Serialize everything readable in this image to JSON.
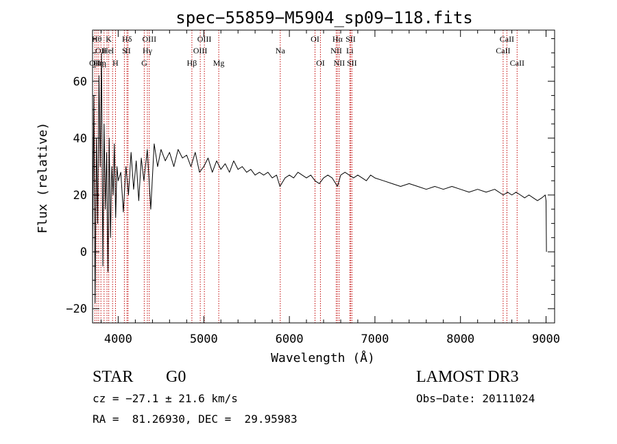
{
  "chart_data": {
    "type": "line",
    "title": "spec−55859−M5904_sp09−118.fits",
    "xlabel": "Wavelength (Å)",
    "ylabel": "Flux (relative)",
    "xlim": [
      3700,
      9100
    ],
    "ylim": [
      -25,
      78
    ],
    "x_ticks": [
      4000,
      5000,
      6000,
      7000,
      8000,
      9000
    ],
    "x_tick_labels": [
      "4000",
      "5000",
      "6000",
      "7000",
      "8000",
      "9000"
    ],
    "y_ticks": [
      -20,
      0,
      20,
      40,
      60
    ],
    "y_tick_labels": [
      "−20",
      "0",
      "20",
      "40",
      "60"
    ],
    "grid": false,
    "series": [
      {
        "name": "flux",
        "x": [
          3700,
          3715,
          3730,
          3745,
          3760,
          3775,
          3790,
          3805,
          3820,
          3835,
          3850,
          3865,
          3880,
          3895,
          3910,
          3925,
          3940,
          3955,
          3970,
          3985,
          4000,
          4030,
          4060,
          4090,
          4120,
          4150,
          4180,
          4210,
          4240,
          4270,
          4300,
          4340,
          4380,
          4420,
          4460,
          4500,
          4550,
          4600,
          4650,
          4700,
          4750,
          4800,
          4850,
          4900,
          4950,
          5000,
          5050,
          5100,
          5150,
          5200,
          5250,
          5300,
          5350,
          5400,
          5450,
          5500,
          5550,
          5600,
          5650,
          5700,
          5750,
          5800,
          5850,
          5890,
          5950,
          6000,
          6050,
          6100,
          6150,
          6200,
          6250,
          6300,
          6350,
          6400,
          6450,
          6500,
          6563,
          6600,
          6650,
          6700,
          6750,
          6800,
          6850,
          6900,
          6950,
          7000,
          7100,
          7200,
          7300,
          7400,
          7500,
          7600,
          7700,
          7800,
          7900,
          8000,
          8100,
          8200,
          8300,
          8400,
          8500,
          8550,
          8600,
          8650,
          8700,
          8750,
          8800,
          8850,
          8900,
          8950,
          8990,
          9000,
          9005
        ],
        "values": [
          0,
          55,
          -18,
          40,
          10,
          62,
          30,
          70,
          -5,
          45,
          15,
          35,
          -7,
          40,
          5,
          30,
          20,
          38,
          12,
          30,
          25,
          28,
          14,
          30,
          20,
          35,
          22,
          32,
          18,
          33,
          25,
          36,
          15,
          38,
          30,
          36,
          32,
          35,
          30,
          36,
          33,
          34,
          30,
          35,
          28,
          30,
          33,
          28,
          32,
          29,
          31,
          28,
          32,
          29,
          30,
          28,
          29,
          27,
          28,
          27,
          28,
          26,
          27,
          23,
          26,
          27,
          26,
          28,
          27,
          26,
          27,
          25,
          24,
          26,
          27,
          26,
          23,
          27,
          28,
          27,
          26,
          27,
          26,
          25,
          27,
          26,
          25,
          24,
          23,
          24,
          23,
          22,
          23,
          22,
          23,
          22,
          21,
          22,
          21,
          22,
          20,
          21,
          20,
          21,
          20,
          19,
          20,
          19,
          18,
          19,
          20,
          18,
          0
        ]
      }
    ],
    "lines": [
      {
        "x": 3727,
        "label": "OII",
        "row": 3
      },
      {
        "x": 3750,
        "label": "Hθ",
        "row": 1
      },
      {
        "x": 3771,
        "label": "Hη",
        "row": 3
      },
      {
        "x": 3798,
        "label": "OII",
        "row": 2
      },
      {
        "x": 3835,
        "label": "η",
        "row": 3
      },
      {
        "x": 3869,
        "label": "He",
        "row": 2
      },
      {
        "x": 3889,
        "label": "K",
        "row": 1
      },
      {
        "x": 3934,
        "label": "I",
        "row": 2
      },
      {
        "x": 3968,
        "label": "H",
        "row": 3
      },
      {
        "x": 4072,
        "label": "S",
        "row": 2
      },
      {
        "x": 4102,
        "label": "Hδ",
        "row": 1
      },
      {
        "x": 4115,
        "label": "II",
        "row": 2
      },
      {
        "x": 4304,
        "label": "G",
        "row": 3
      },
      {
        "x": 4341,
        "label": "Hγ",
        "row": 2
      },
      {
        "x": 4363,
        "label": "OIII",
        "row": 1
      },
      {
        "x": 4861,
        "label": "Hβ",
        "row": 3
      },
      {
        "x": 4959,
        "label": "OIII",
        "row": 2
      },
      {
        "x": 5007,
        "label": "OIII",
        "row": 1
      },
      {
        "x": 5175,
        "label": "Mg",
        "row": 3
      },
      {
        "x": 5894,
        "label": "Na",
        "row": 2
      },
      {
        "x": 6300,
        "label": "OI",
        "row": 1
      },
      {
        "x": 6363,
        "label": "OI",
        "row": 3
      },
      {
        "x": 6548,
        "label": "NII",
        "row": 2
      },
      {
        "x": 6563,
        "label": "Hα",
        "row": 1
      },
      {
        "x": 6583,
        "label": "NII",
        "row": 3
      },
      {
        "x": 6707,
        "label": "Li",
        "row": 2
      },
      {
        "x": 6716,
        "label": "SII",
        "row": 1
      },
      {
        "x": 6731,
        "label": "SII",
        "row": 3
      },
      {
        "x": 8498,
        "label": "CaII",
        "row": 2
      },
      {
        "x": 8542,
        "label": "CaII",
        "row": 1
      },
      {
        "x": 8662,
        "label": "CaII",
        "row": 3
      }
    ]
  },
  "info": {
    "object_class": "STAR",
    "subclass": "G0",
    "survey": "LAMOST DR3",
    "redshift": "cz = −27.1 ± 21.6 km/s",
    "obs_date": "Obs−Date: 20111024",
    "coords": "RA =  81.26930, DEC =  29.95983"
  }
}
